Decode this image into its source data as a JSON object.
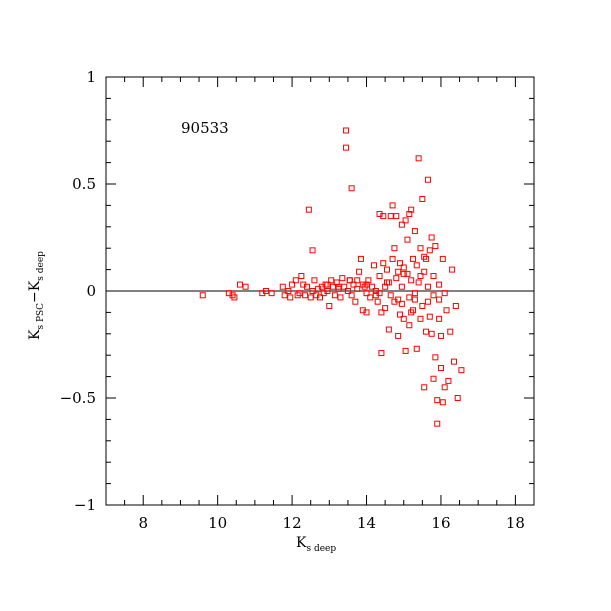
{
  "chart_data": {
    "type": "scatter",
    "annotation": "90533",
    "xlabel": {
      "main": "K",
      "sub": "s deep"
    },
    "ylabel": {
      "a_main": "K",
      "a_sub": "s PSC",
      "sep": "−",
      "b_main": "K",
      "b_sub": "s deep"
    },
    "xlim": [
      7,
      18.5
    ],
    "ylim": [
      -1,
      1
    ],
    "x_ticks": [
      8,
      10,
      12,
      14,
      16,
      18
    ],
    "x_tick_labels": [
      "8",
      "10",
      "12",
      "14",
      "16",
      "18"
    ],
    "y_ticks": [
      -1,
      -0.5,
      0,
      0.5,
      1
    ],
    "y_tick_labels": [
      "−1",
      "−0.5",
      "0",
      "0.5",
      "1"
    ],
    "reference_line_y": 0,
    "marker": "open-square",
    "marker_color": "#ff0000",
    "grid": false,
    "points": [
      [
        9.6,
        -0.02
      ],
      [
        10.3,
        -0.01
      ],
      [
        10.4,
        -0.02
      ],
      [
        10.45,
        -0.03
      ],
      [
        10.6,
        0.03
      ],
      [
        10.75,
        0.02
      ],
      [
        11.2,
        -0.01
      ],
      [
        11.3,
        0.0
      ],
      [
        11.45,
        -0.01
      ],
      [
        11.75,
        0.02
      ],
      [
        11.8,
        -0.02
      ],
      [
        11.9,
        0.0
      ],
      [
        11.95,
        -0.03
      ],
      [
        12.0,
        0.03
      ],
      [
        12.1,
        0.05
      ],
      [
        12.15,
        -0.02
      ],
      [
        12.2,
        -0.01
      ],
      [
        12.25,
        0.07
      ],
      [
        12.3,
        0.03
      ],
      [
        12.35,
        -0.02
      ],
      [
        12.4,
        0.02
      ],
      [
        12.45,
        0.38
      ],
      [
        12.5,
        -0.03
      ],
      [
        12.55,
        0.19
      ],
      [
        12.55,
        0.0
      ],
      [
        12.6,
        0.05
      ],
      [
        12.65,
        -0.02
      ],
      [
        12.7,
        0.01
      ],
      [
        12.75,
        -0.03
      ],
      [
        12.8,
        0.02
      ],
      [
        12.85,
        -0.01
      ],
      [
        12.9,
        0.03
      ],
      [
        12.95,
        0.0
      ],
      [
        13.0,
        -0.07
      ],
      [
        13.05,
        0.05
      ],
      [
        13.1,
        0.02
      ],
      [
        13.15,
        -0.02
      ],
      [
        13.2,
        0.04
      ],
      [
        13.25,
        0.01
      ],
      [
        13.3,
        -0.03
      ],
      [
        13.35,
        0.06
      ],
      [
        13.4,
        0.02
      ],
      [
        13.45,
        0.75
      ],
      [
        13.45,
        0.67
      ],
      [
        13.5,
        0.0
      ],
      [
        13.55,
        0.05
      ],
      [
        13.6,
        0.48
      ],
      [
        13.6,
        -0.02
      ],
      [
        13.65,
        0.03
      ],
      [
        13.7,
        -0.05
      ],
      [
        13.75,
        0.01
      ],
      [
        13.8,
        0.09
      ],
      [
        13.85,
        0.15
      ],
      [
        13.9,
        0.03
      ],
      [
        13.9,
        -0.09
      ],
      [
        13.95,
        0.02
      ],
      [
        14.0,
        -0.01
      ],
      [
        14.0,
        -0.1
      ],
      [
        14.05,
        0.05
      ],
      [
        14.1,
        -0.03
      ],
      [
        14.15,
        0.02
      ],
      [
        14.2,
        0.12
      ],
      [
        14.25,
        0.0
      ],
      [
        14.3,
        -0.05
      ],
      [
        14.35,
        0.36
      ],
      [
        14.35,
        0.07
      ],
      [
        14.4,
        -0.1
      ],
      [
        14.4,
        -0.29
      ],
      [
        14.45,
        0.35
      ],
      [
        14.45,
        0.13
      ],
      [
        14.5,
        0.02
      ],
      [
        14.5,
        -0.08
      ],
      [
        14.55,
        0.1
      ],
      [
        14.6,
        -0.18
      ],
      [
        14.6,
        0.04
      ],
      [
        14.65,
        0.35
      ],
      [
        14.65,
        -0.02
      ],
      [
        14.7,
        0.4
      ],
      [
        14.7,
        0.15
      ],
      [
        14.75,
        -0.05
      ],
      [
        14.75,
        0.2
      ],
      [
        14.8,
        0.35
      ],
      [
        14.8,
        0.06
      ],
      [
        14.85,
        -0.21
      ],
      [
        14.85,
        0.09
      ],
      [
        14.9,
        0.13
      ],
      [
        14.9,
        -0.11
      ],
      [
        14.95,
        0.31
      ],
      [
        14.95,
        0.02
      ],
      [
        15.0,
        -0.13
      ],
      [
        15.0,
        0.11
      ],
      [
        15.05,
        0.33
      ],
      [
        15.05,
        -0.28
      ],
      [
        15.1,
        0.08
      ],
      [
        15.1,
        0.24
      ],
      [
        15.15,
        0.36
      ],
      [
        15.15,
        -0.16
      ],
      [
        15.2,
        0.38
      ],
      [
        15.2,
        0.05
      ],
      [
        15.25,
        0.15
      ],
      [
        15.25,
        -0.09
      ],
      [
        15.3,
        0.28
      ],
      [
        15.3,
        -0.01
      ],
      [
        15.35,
        0.12
      ],
      [
        15.35,
        -0.27
      ],
      [
        15.4,
        0.62
      ],
      [
        15.4,
        0.04
      ],
      [
        15.45,
        -0.13
      ],
      [
        15.45,
        0.2
      ],
      [
        15.5,
        0.43
      ],
      [
        15.5,
        -0.07
      ],
      [
        15.55,
        -0.45
      ],
      [
        15.55,
        0.09
      ],
      [
        15.6,
        0.15
      ],
      [
        15.6,
        -0.19
      ],
      [
        15.65,
        0.52
      ],
      [
        15.65,
        0.02
      ],
      [
        15.7,
        -0.12
      ],
      [
        15.7,
        0.19
      ],
      [
        15.75,
        0.25
      ],
      [
        15.75,
        -0.2
      ],
      [
        15.8,
        -0.41
      ],
      [
        15.8,
        0.07
      ],
      [
        15.85,
        -0.31
      ],
      [
        15.85,
        0.21
      ],
      [
        15.9,
        -0.51
      ],
      [
        15.9,
        -0.62
      ],
      [
        15.95,
        -0.13
      ],
      [
        15.95,
        0.03
      ],
      [
        16.0,
        -0.36
      ],
      [
        16.0,
        -0.21
      ],
      [
        16.05,
        -0.52
      ],
      [
        16.05,
        0.15
      ],
      [
        16.1,
        -0.01
      ],
      [
        16.1,
        -0.45
      ],
      [
        16.2,
        -0.42
      ],
      [
        16.25,
        -0.19
      ],
      [
        16.3,
        0.1
      ],
      [
        16.35,
        -0.33
      ],
      [
        16.4,
        -0.07
      ],
      [
        16.45,
        -0.5
      ],
      [
        16.55,
        -0.37
      ],
      [
        15.8,
        -0.02
      ],
      [
        15.3,
        -0.04
      ],
      [
        14.95,
        -0.06
      ],
      [
        14.55,
        0.04
      ],
      [
        14.25,
        -0.02
      ],
      [
        13.75,
        0.05
      ],
      [
        15.55,
        0.16
      ],
      [
        15.2,
        -0.1
      ],
      [
        16.15,
        -0.09
      ],
      [
        14.85,
        -0.04
      ],
      [
        15.65,
        -0.05
      ],
      [
        13.55,
        0.05
      ],
      [
        14.35,
        -0.01
      ],
      [
        15.0,
        0.08
      ],
      [
        15.45,
        0.07
      ],
      [
        15.15,
        -0.03
      ],
      [
        13.25,
        0.02
      ],
      [
        12.95,
        0.03
      ],
      [
        14.0,
        0.03
      ],
      [
        15.95,
        -0.04
      ]
    ]
  }
}
